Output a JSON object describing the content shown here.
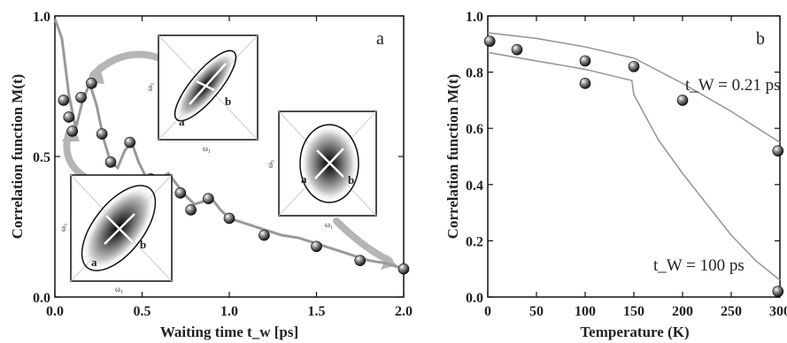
{
  "chart_data": [
    {
      "type": "scatter",
      "panel_label": "a",
      "xlabel": "Waiting time t_w [ps]",
      "ylabel": "Correlation function M(t)",
      "xlim": [
        0.0,
        2.0
      ],
      "ylim": [
        0.0,
        1.0
      ],
      "xticks": [
        "0.0",
        "0.5",
        "1.0",
        "1.5",
        "2.0"
      ],
      "yticks": [
        "0.0",
        "0.5",
        "1.0"
      ],
      "points": {
        "x": [
          0.05,
          0.08,
          0.1,
          0.15,
          0.21,
          0.27,
          0.32,
          0.43,
          0.55,
          0.62,
          0.72,
          0.78,
          0.88,
          1.0,
          1.2,
          1.5,
          1.75,
          2.0
        ],
        "y": [
          0.7,
          0.64,
          0.59,
          0.71,
          0.76,
          0.58,
          0.48,
          0.55,
          0.42,
          0.41,
          0.37,
          0.31,
          0.35,
          0.28,
          0.22,
          0.18,
          0.13,
          0.1
        ]
      },
      "fit_curve": {
        "x": [
          0.0,
          0.04,
          0.08,
          0.12,
          0.16,
          0.2,
          0.24,
          0.28,
          0.32,
          0.36,
          0.4,
          0.44,
          0.48,
          0.52,
          0.56,
          0.6,
          0.65,
          0.7,
          0.75,
          0.8,
          0.85,
          0.9,
          0.95,
          1.0,
          1.05,
          1.1,
          1.2,
          1.3,
          1.4,
          1.5,
          1.6,
          1.7,
          1.8,
          1.9,
          2.0
        ],
        "y": [
          0.99,
          0.92,
          0.72,
          0.6,
          0.7,
          0.76,
          0.68,
          0.56,
          0.48,
          0.46,
          0.52,
          0.55,
          0.48,
          0.43,
          0.41,
          0.42,
          0.44,
          0.4,
          0.36,
          0.33,
          0.34,
          0.35,
          0.31,
          0.28,
          0.27,
          0.26,
          0.24,
          0.22,
          0.21,
          0.19,
          0.17,
          0.15,
          0.13,
          0.12,
          0.1
        ]
      },
      "insets": [
        {
          "point_labels": [
            "a",
            "b"
          ],
          "axis_labels": [
            "ω₁",
            "ω₃"
          ],
          "anchor_x": 0.17,
          "anchor_y": 0.9
        },
        {
          "point_labels": [
            "a",
            "b"
          ],
          "axis_labels": [
            "ω₁",
            "ω₃"
          ],
          "anchor_x": 1.65,
          "anchor_y": 0.6
        },
        {
          "point_labels": [
            "a",
            "b"
          ],
          "axis_labels": [
            "ω₁",
            "ω₃"
          ],
          "anchor_x": 0.05,
          "anchor_y": 0.3
        }
      ]
    },
    {
      "type": "scatter",
      "panel_label": "b",
      "xlabel": "Temperature (K)",
      "ylabel": "Correlation function M(t)",
      "xlim": [
        0,
        300
      ],
      "ylim": [
        0.0,
        1.0
      ],
      "xticks": [
        "0",
        "50",
        "100",
        "150",
        "200",
        "250",
        "300"
      ],
      "yticks": [
        "0.0",
        "0.2",
        "0.4",
        "0.6",
        "0.8",
        "1.0"
      ],
      "points": {
        "x": [
          2,
          30,
          100,
          100,
          150,
          200,
          298,
          298
        ],
        "y": [
          0.91,
          0.88,
          0.84,
          0.76,
          0.82,
          0.7,
          0.52,
          0.02
        ]
      },
      "curves": [
        {
          "label": "t_W = 0.21 ps",
          "x": [
            0,
            50,
            100,
            150,
            200,
            250,
            300
          ],
          "y": [
            0.94,
            0.92,
            0.89,
            0.85,
            0.76,
            0.66,
            0.55
          ]
        },
        {
          "label": "t_W = 100 ps",
          "x": [
            0,
            50,
            100,
            148,
            150,
            175,
            200,
            225,
            250,
            275,
            300
          ],
          "y": [
            0.87,
            0.84,
            0.81,
            0.77,
            0.72,
            0.56,
            0.44,
            0.33,
            0.22,
            0.13,
            0.06
          ]
        }
      ],
      "annotations": [
        "t_W = 0.21 ps",
        "t_W = 100 ps"
      ]
    }
  ]
}
